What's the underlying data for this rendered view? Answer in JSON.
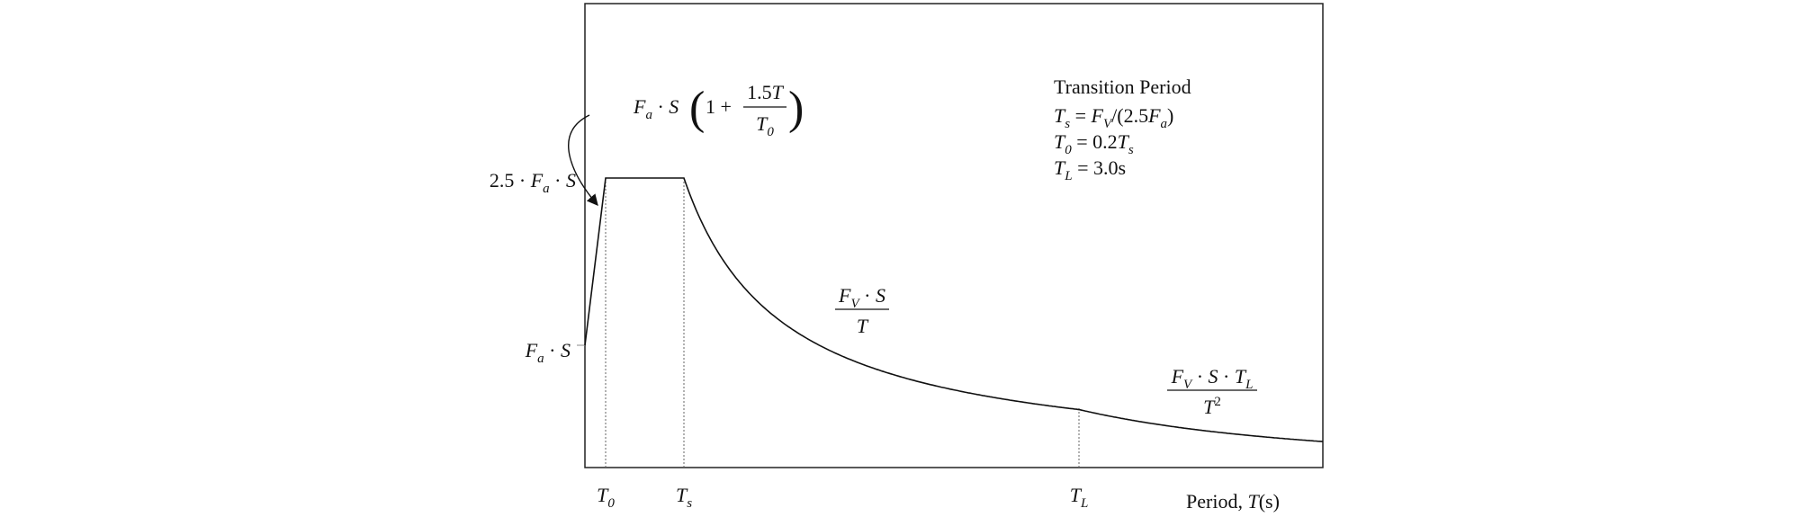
{
  "labels": {
    "peak": [
      "2.5 · ",
      "F",
      "a",
      " · ",
      "S"
    ],
    "base": [
      "F",
      "a",
      " · ",
      "S"
    ],
    "ramp": {
      "left": [
        "F",
        "a",
        " · ",
        "S"
      ],
      "open": "(",
      "one_plus": "1 + ",
      "num": [
        "1.5",
        "T"
      ],
      "den": [
        "T",
        "0"
      ],
      "close": ")"
    },
    "mid": {
      "num": [
        "F",
        "V",
        " · ",
        "S"
      ],
      "den": "T"
    },
    "tail": {
      "num": [
        "F",
        "V",
        " · ",
        "S",
        " · ",
        "T",
        "L"
      ],
      "den": [
        "T",
        "2"
      ]
    }
  },
  "notes": {
    "title": "Transition Period",
    "lines": [
      [
        "T",
        "s",
        " = ",
        "F",
        "V",
        "/(2.5",
        "F",
        "a",
        ")"
      ],
      [
        "T",
        "0",
        " = 0.2",
        "T",
        "s"
      ],
      [
        "T",
        "L",
        " = 3.0s"
      ]
    ]
  },
  "axis": {
    "ticks": [
      [
        "T",
        "0"
      ],
      [
        "T",
        "s"
      ],
      [
        "T",
        "L"
      ]
    ],
    "label": [
      "Period, ",
      "T",
      "(s)"
    ]
  }
}
